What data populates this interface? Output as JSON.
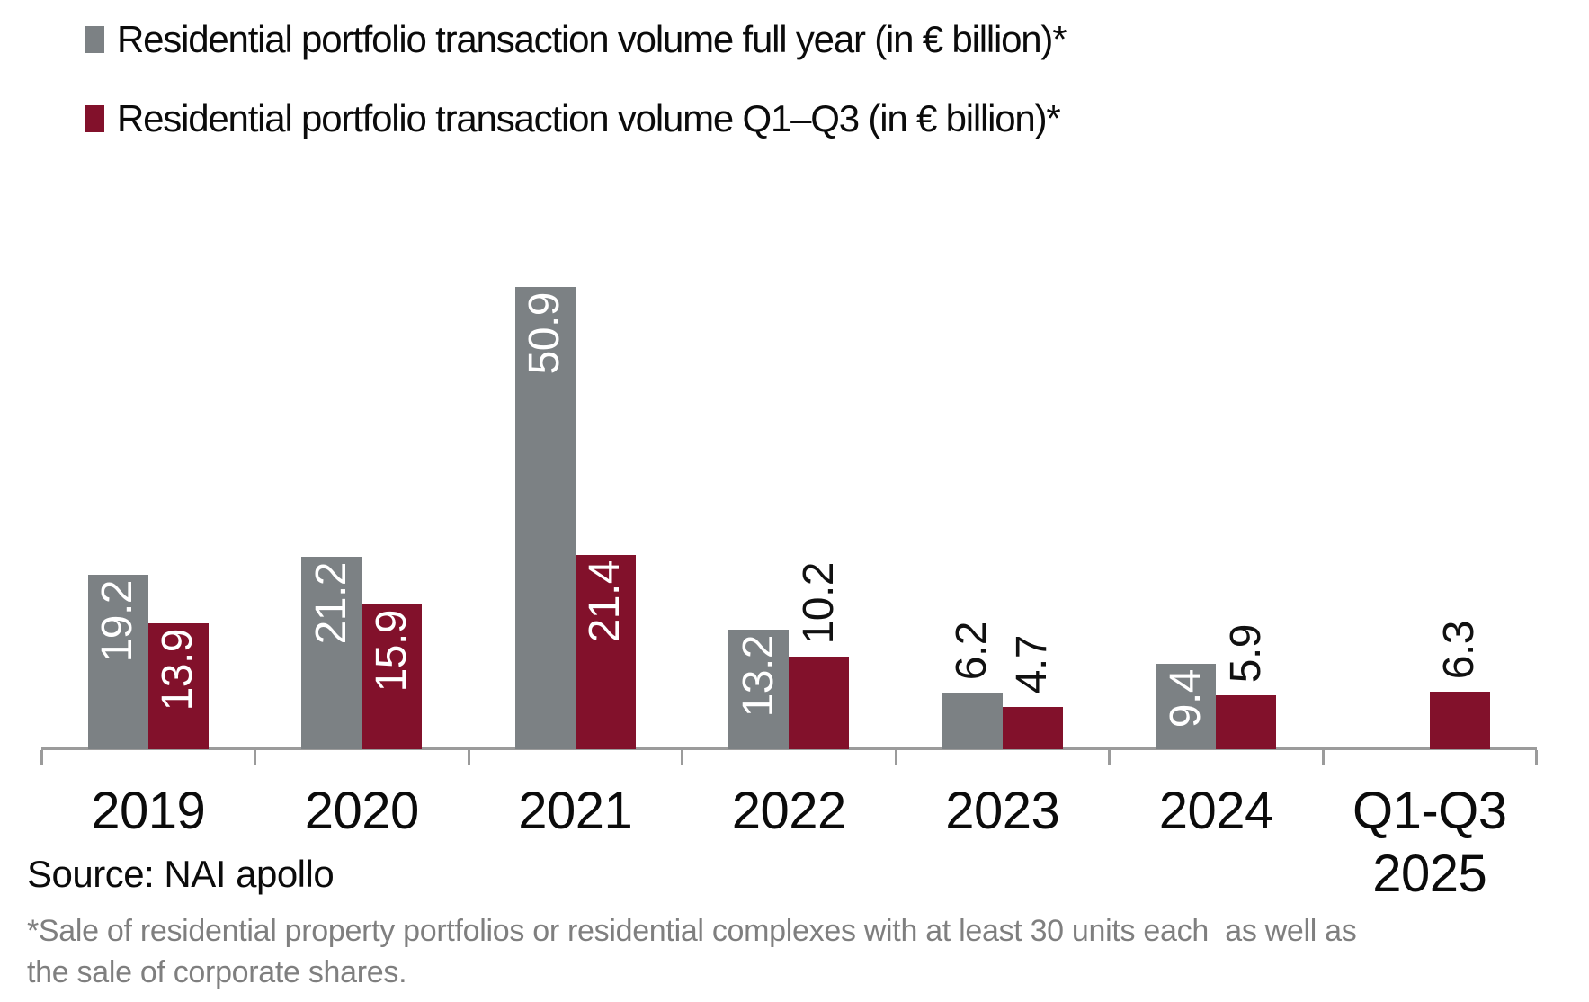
{
  "legend": [
    {
      "label": "Residential portfolio transaction volume full year (in € billion)*",
      "color": "#7C8184"
    },
    {
      "label": "Residential portfolio transaction volume Q1–Q3 (in € billion)*",
      "color": "#82112B"
    }
  ],
  "chart_data": {
    "type": "bar",
    "title": "",
    "xlabel": "",
    "ylabel": "",
    "categories": [
      "2019",
      "2020",
      "2021",
      "2022",
      "2023",
      "2024",
      "Q1-Q3\n2025"
    ],
    "series": [
      {
        "name": "Residential portfolio transaction volume full year (in € billion)*",
        "color": "#7C8184",
        "values": [
          19.2,
          21.2,
          50.9,
          13.2,
          6.2,
          9.4,
          null
        ]
      },
      {
        "name": "Residential portfolio transaction volume Q1–Q3 (in € billion)*",
        "color": "#82112B",
        "values": [
          13.9,
          15.9,
          21.4,
          10.2,
          4.7,
          5.9,
          6.3
        ]
      }
    ],
    "label_placement": [
      [
        "inside",
        "inside",
        "inside",
        "inside",
        "outside",
        "inside",
        null
      ],
      [
        "inside",
        "inside",
        "inside",
        "outside",
        "outside",
        "outside",
        "outside"
      ]
    ],
    "value_label_colors": {
      "inside": "#ffffff",
      "outside": "#111111"
    },
    "ylim": [
      0,
      55
    ],
    "grid": false,
    "y_axis_visible": false,
    "legend_position": "top-left",
    "axis_color": "#9b9b9b"
  },
  "source": "Source: NAI apollo",
  "footnote_lines": [
    "*Sale of residential property portfolios or residential complexes with at least 30 units each  as well as",
    "the sale of corporate shares."
  ]
}
